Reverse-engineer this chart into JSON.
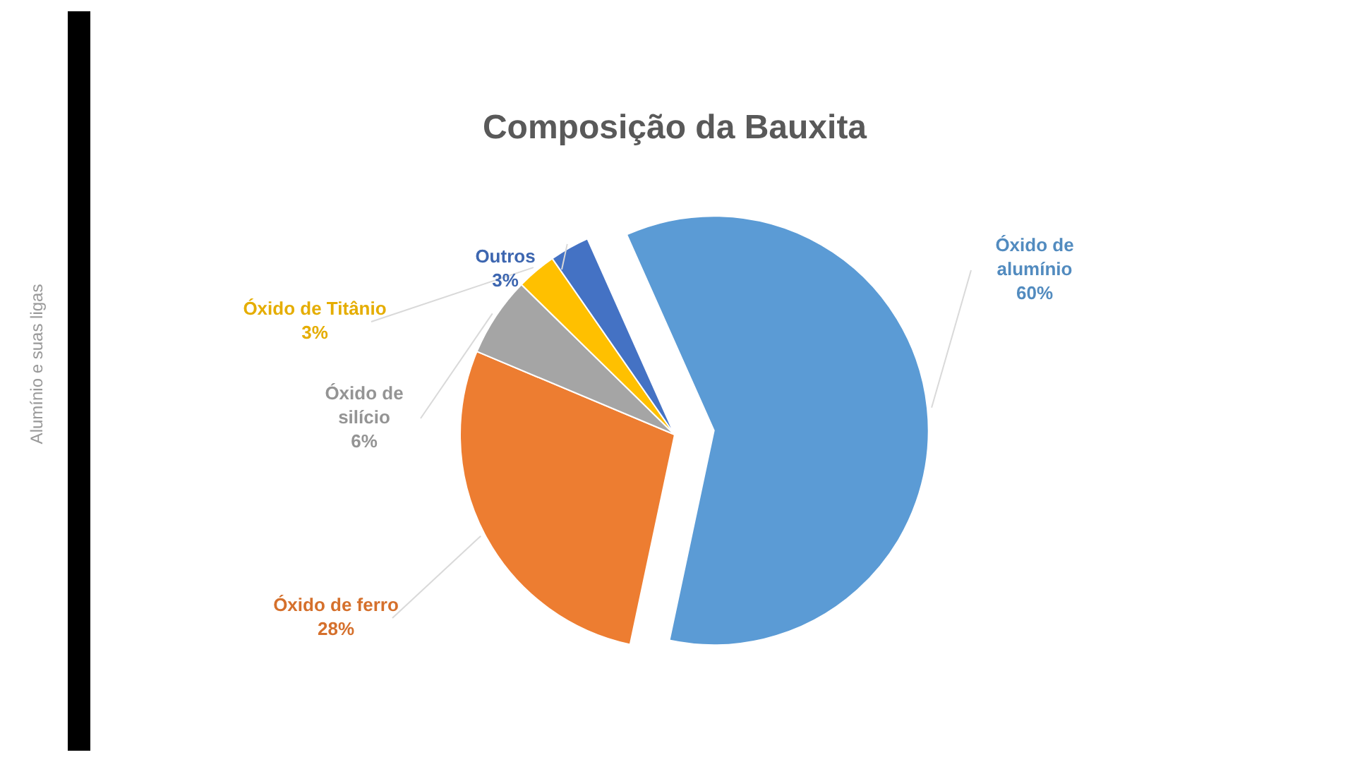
{
  "chart_data": {
    "type": "pie",
    "title": "Composição da Bauxita",
    "categories": [
      "Óxido de alumínio",
      "Óxido de ferro",
      "Óxido de silício",
      "Óxido de Titânio",
      "Outros"
    ],
    "values": [
      60,
      28,
      6,
      3,
      3
    ],
    "colors": [
      "#5b9bd5",
      "#ed7d31",
      "#a5a5a5",
      "#ffc000",
      "#4472c4"
    ],
    "value_labels": [
      "60%",
      "28%",
      "6%",
      "3%",
      "3%"
    ],
    "annotations": [
      "Alumínio e suas ligas"
    ]
  }
}
